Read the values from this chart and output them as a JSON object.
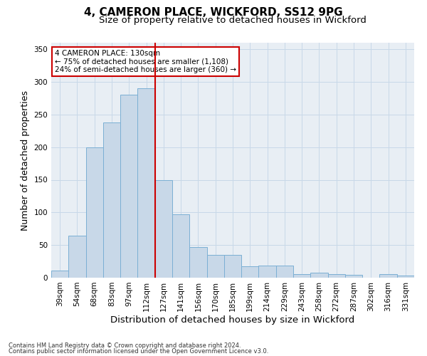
{
  "title": "4, CAMERON PLACE, WICKFORD, SS12 9PG",
  "subtitle": "Size of property relative to detached houses in Wickford",
  "xlabel": "Distribution of detached houses by size in Wickford",
  "ylabel": "Number of detached properties",
  "footnote1": "Contains HM Land Registry data © Crown copyright and database right 2024.",
  "footnote2": "Contains public sector information licensed under the Open Government Licence v3.0.",
  "categories": [
    "39sqm",
    "54sqm",
    "68sqm",
    "83sqm",
    "97sqm",
    "112sqm",
    "127sqm",
    "141sqm",
    "156sqm",
    "170sqm",
    "185sqm",
    "199sqm",
    "214sqm",
    "229sqm",
    "243sqm",
    "258sqm",
    "272sqm",
    "287sqm",
    "302sqm",
    "316sqm",
    "331sqm"
  ],
  "values": [
    11,
    64,
    200,
    238,
    280,
    290,
    150,
    97,
    47,
    35,
    35,
    18,
    19,
    19,
    5,
    8,
    6,
    4,
    0,
    5,
    3
  ],
  "bar_color": "#c8d8e8",
  "bar_edge_color": "#7bafd4",
  "highlight_line_index": 6,
  "highlight_line_color": "#cc0000",
  "annotation_line1": "4 CAMERON PLACE: 130sqm",
  "annotation_line2": "← 75% of detached houses are smaller (1,108)",
  "annotation_line3": "24% of semi-detached houses are larger (360) →",
  "annotation_box_color": "#cc0000",
  "ylim": [
    0,
    360
  ],
  "yticks": [
    0,
    50,
    100,
    150,
    200,
    250,
    300,
    350
  ],
  "grid_color": "#c8d8e8",
  "background_color": "#e8eef4",
  "title_fontsize": 11,
  "subtitle_fontsize": 9.5,
  "tick_fontsize": 7.5,
  "ylabel_fontsize": 9,
  "xlabel_fontsize": 9.5
}
